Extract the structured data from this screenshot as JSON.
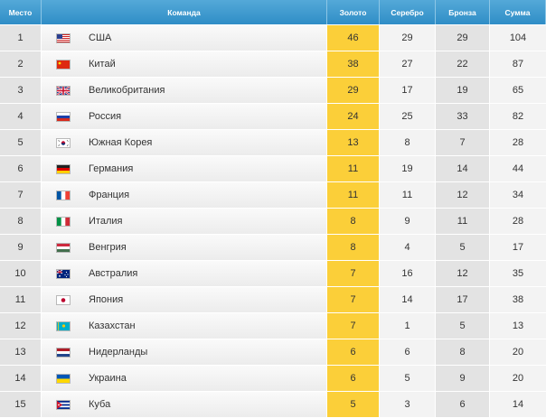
{
  "header": {
    "place": "Место",
    "team": "Команда",
    "gold": "Золото",
    "silver": "Серебро",
    "bronze": "Бронза",
    "total": "Сумма"
  },
  "rows": [
    {
      "place": "1",
      "team": "США",
      "flag": "us-flag-icon",
      "gold": "46",
      "silver": "29",
      "bronze": "29",
      "total": "104"
    },
    {
      "place": "2",
      "team": "Китай",
      "flag": "china-flag-icon",
      "gold": "38",
      "silver": "27",
      "bronze": "22",
      "total": "87"
    },
    {
      "place": "3",
      "team": "Великобритания",
      "flag": "uk-flag-icon",
      "gold": "29",
      "silver": "17",
      "bronze": "19",
      "total": "65"
    },
    {
      "place": "4",
      "team": "Россия",
      "flag": "russia-flag-icon",
      "gold": "24",
      "silver": "25",
      "bronze": "33",
      "total": "82"
    },
    {
      "place": "5",
      "team": "Южная Корея",
      "flag": "south-korea-flag-icon",
      "gold": "13",
      "silver": "8",
      "bronze": "7",
      "total": "28"
    },
    {
      "place": "6",
      "team": "Германия",
      "flag": "germany-flag-icon",
      "gold": "11",
      "silver": "19",
      "bronze": "14",
      "total": "44"
    },
    {
      "place": "7",
      "team": "Франция",
      "flag": "france-flag-icon",
      "gold": "11",
      "silver": "11",
      "bronze": "12",
      "total": "34"
    },
    {
      "place": "8",
      "team": "Италия",
      "flag": "italy-flag-icon",
      "gold": "8",
      "silver": "9",
      "bronze": "11",
      "total": "28"
    },
    {
      "place": "9",
      "team": "Венгрия",
      "flag": "hungary-flag-icon",
      "gold": "8",
      "silver": "4",
      "bronze": "5",
      "total": "17"
    },
    {
      "place": "10",
      "team": "Австралия",
      "flag": "australia-flag-icon",
      "gold": "7",
      "silver": "16",
      "bronze": "12",
      "total": "35"
    },
    {
      "place": "11",
      "team": "Япония",
      "flag": "japan-flag-icon",
      "gold": "7",
      "silver": "14",
      "bronze": "17",
      "total": "38"
    },
    {
      "place": "12",
      "team": "Казахстан",
      "flag": "kazakhstan-flag-icon",
      "gold": "7",
      "silver": "1",
      "bronze": "5",
      "total": "13"
    },
    {
      "place": "13",
      "team": "Нидерланды",
      "flag": "netherlands-flag-icon",
      "gold": "6",
      "silver": "6",
      "bronze": "8",
      "total": "20"
    },
    {
      "place": "14",
      "team": "Украина",
      "flag": "ukraine-flag-icon",
      "gold": "6",
      "silver": "5",
      "bronze": "9",
      "total": "20"
    },
    {
      "place": "15",
      "team": "Куба",
      "flag": "cuba-flag-icon",
      "gold": "5",
      "silver": "3",
      "bronze": "6",
      "total": "14"
    }
  ],
  "colors": {
    "header": "#3c97cf",
    "gold_column": "#fbcf39"
  }
}
